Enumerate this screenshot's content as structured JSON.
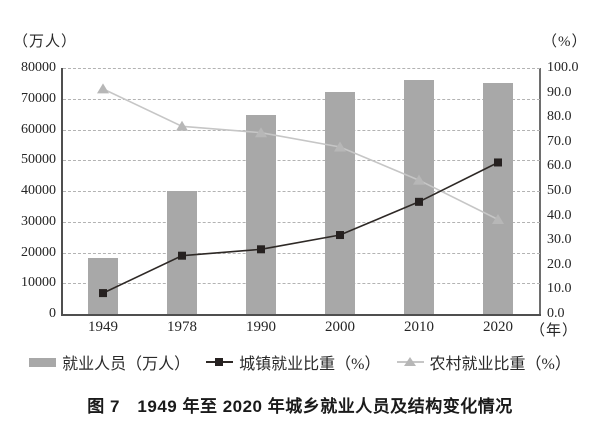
{
  "chart_data": {
    "type": "bar+line combo",
    "title": "图 7　1949 年至 2020 年城乡就业人员及结构变化情况",
    "categories": [
      "1949",
      "1978",
      "1990",
      "2000",
      "2010",
      "2020"
    ],
    "series": [
      {
        "name": "就业人员（万人）",
        "type": "bar",
        "axis": "left",
        "values": [
          18082,
          40152,
          64749,
          72085,
          76105,
          75064
        ],
        "color": "#a8a8a8"
      },
      {
        "name": "城镇就业比重（%）",
        "type": "line",
        "axis": "right",
        "marker": "square",
        "values": [
          8.5,
          23.7,
          26.3,
          32.1,
          45.6,
          61.6
        ],
        "color": "#2e2926",
        "marker_color": "#262120"
      },
      {
        "name": "农村就业比重（%）",
        "type": "line",
        "axis": "right",
        "marker": "triangle",
        "values": [
          91.5,
          76.3,
          73.7,
          67.9,
          54.4,
          38.4
        ],
        "color": "#c6c6c6",
        "marker_color": "#b7b7b7"
      }
    ],
    "left_axis": {
      "unit": "（万人）",
      "min": 0,
      "max": 80000,
      "tick_step": 10000,
      "ticks": [
        "0",
        "10000",
        "20000",
        "30000",
        "40000",
        "50000",
        "60000",
        "70000",
        "80000"
      ]
    },
    "right_axis": {
      "unit": "（%）",
      "min": 0,
      "max": 100,
      "tick_step": 10,
      "ticks": [
        "0.0",
        "10.0",
        "20.0",
        "30.0",
        "40.0",
        "50.0",
        "60.0",
        "70.0",
        "80.0",
        "90.0",
        "100.0"
      ]
    },
    "x_axis": {
      "unit": "（年）"
    },
    "grid": "horizontal dashed lines at left-axis ticks",
    "legend_position": "bottom"
  }
}
